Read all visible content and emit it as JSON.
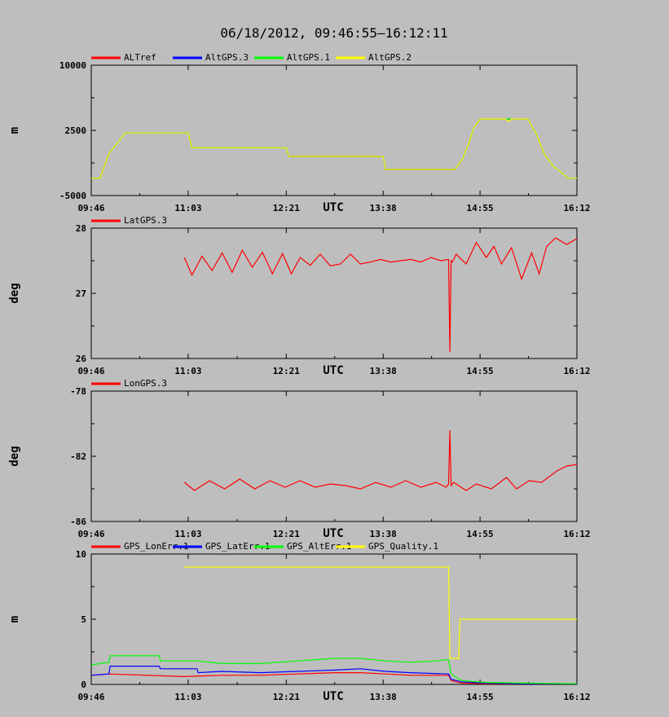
{
  "title": "06/18/2012, 09:46:55–16:12:11",
  "chart_data": [
    {
      "type": "line",
      "ylabel": "m",
      "xlabel": "UTC",
      "x_range": [
        "09:46",
        "16:12"
      ],
      "x_ticks": [
        "09:46",
        "11:03",
        "12:21",
        "13:38",
        "14:55",
        "16:12"
      ],
      "ylim": [
        -5000,
        10000
      ],
      "y_ticks": [
        "10000",
        "2500",
        "-5000"
      ],
      "legend": "top-left",
      "series": [
        {
          "name": "ALTref",
          "color": "#ff0000",
          "x": [
            "09:46",
            "09:53",
            "10:00",
            "10:13",
            "10:40",
            "11:03",
            "11:06",
            "11:30",
            "12:00",
            "12:21",
            "12:23",
            "13:00",
            "13:38",
            "13:40",
            "14:00",
            "14:30",
            "14:35",
            "14:41",
            "14:46",
            "14:50",
            "14:55",
            "15:10",
            "15:20",
            "15:30",
            "15:33",
            "15:40",
            "15:46",
            "15:53",
            "16:00",
            "16:05",
            "16:12"
          ],
          "y": [
            -3000,
            -3000,
            -200,
            2200,
            2200,
            2200,
            500,
            500,
            500,
            500,
            -500,
            -500,
            -500,
            -2000,
            -2000,
            -2000,
            -2000,
            -800,
            1000,
            2800,
            3800,
            3800,
            3800,
            3800,
            3800,
            2000,
            -200,
            -1600,
            -2400,
            -3000,
            -3000
          ]
        },
        {
          "name": "AltGPS.3",
          "color": "#0000ff",
          "x": [
            "09:46",
            "09:53",
            "10:00",
            "10:13",
            "10:40",
            "11:03",
            "11:06",
            "11:30",
            "12:00",
            "12:21",
            "12:23",
            "13:00",
            "13:38",
            "13:40",
            "14:00",
            "14:30",
            "14:35",
            "14:41",
            "14:46",
            "14:50",
            "14:55",
            "15:10",
            "15:20",
            "15:30",
            "15:33",
            "15:40",
            "15:46",
            "15:53",
            "16:00",
            "16:05",
            "16:12"
          ],
          "y": [
            -3000,
            -3000,
            -200,
            2200,
            2200,
            2200,
            500,
            500,
            500,
            500,
            -500,
            -500,
            -500,
            -2000,
            -2000,
            -2000,
            -2000,
            -800,
            1000,
            2800,
            3800,
            3800,
            3800,
            3800,
            3800,
            2000,
            -200,
            -1600,
            -2400,
            -3000,
            -3000
          ]
        },
        {
          "name": "AltGPS.1",
          "color": "#00ff00",
          "x": [
            "09:46",
            "09:53",
            "10:00",
            "10:13",
            "10:40",
            "11:03",
            "11:06",
            "11:30",
            "12:00",
            "12:21",
            "12:23",
            "13:00",
            "13:38",
            "13:40",
            "14:00",
            "14:30",
            "14:35",
            "14:41",
            "14:46",
            "14:50",
            "14:55",
            "15:10",
            "15:20",
            "15:30",
            "15:33",
            "15:40",
            "15:46",
            "15:53",
            "16:00",
            "16:05",
            "16:12"
          ],
          "y": [
            -3000,
            -3000,
            -200,
            2200,
            2200,
            2200,
            500,
            500,
            500,
            500,
            -500,
            -500,
            -500,
            -2000,
            -2000,
            -2000,
            -2000,
            -800,
            1000,
            2800,
            3800,
            3800,
            3800,
            3800,
            3800,
            2000,
            -200,
            -1600,
            -2400,
            -3000,
            -3000
          ]
        },
        {
          "name": "AltGPS.2",
          "color": "#ffff00",
          "x": [
            "09:46",
            "09:53",
            "10:00",
            "10:13",
            "10:40",
            "11:03",
            "11:06",
            "11:30",
            "12:00",
            "12:21",
            "12:23",
            "13:00",
            "13:38",
            "13:40",
            "14:00",
            "14:30",
            "14:35",
            "14:41",
            "14:46",
            "14:50",
            "14:55",
            "15:10",
            "15:15",
            "15:18",
            "15:20",
            "15:30",
            "15:33",
            "15:40",
            "15:46",
            "15:53",
            "16:00",
            "16:05",
            "16:12"
          ],
          "y": [
            -3000,
            -3000,
            -200,
            2200,
            2200,
            2200,
            500,
            500,
            500,
            500,
            -500,
            -500,
            -500,
            -2000,
            -2000,
            -2000,
            -2000,
            -800,
            1000,
            2800,
            3800,
            3800,
            3800,
            3500,
            3800,
            3800,
            3800,
            2000,
            -200,
            -1600,
            -2400,
            -3000,
            -3000
          ]
        }
      ]
    },
    {
      "type": "line",
      "ylabel": "deg",
      "xlabel": "UTC",
      "x_range": [
        "09:46",
        "16:12"
      ],
      "x_ticks": [
        "09:46",
        "11:03",
        "12:21",
        "13:38",
        "14:55",
        "16:12"
      ],
      "ylim": [
        26,
        28
      ],
      "y_ticks": [
        "28",
        "27",
        "26"
      ],
      "legend": "top-left",
      "series": [
        {
          "name": "LatGPS.3",
          "color": "#ff0000",
          "x": [
            "11:00",
            "11:06",
            "11:14",
            "11:22",
            "11:30",
            "11:38",
            "11:46",
            "11:54",
            "12:02",
            "12:10",
            "12:18",
            "12:25",
            "12:32",
            "12:40",
            "12:48",
            "12:56",
            "13:04",
            "13:12",
            "13:20",
            "13:28",
            "13:36",
            "13:44",
            "13:52",
            "14:00",
            "14:08",
            "14:16",
            "14:24",
            "14:30",
            "14:31",
            "14:32",
            "14:33",
            "14:36",
            "14:44",
            "14:52",
            "15:00",
            "15:06",
            "15:12",
            "15:20",
            "15:28",
            "15:36",
            "15:42",
            "15:48",
            "15:55",
            "16:04",
            "16:12"
          ],
          "y": [
            27.55,
            27.28,
            27.57,
            27.35,
            27.62,
            27.32,
            27.66,
            27.4,
            27.63,
            27.3,
            27.61,
            27.3,
            27.55,
            27.43,
            27.6,
            27.42,
            27.45,
            27.6,
            27.45,
            27.48,
            27.52,
            27.48,
            27.5,
            27.52,
            27.48,
            27.55,
            27.5,
            27.52,
            26.1,
            27.5,
            27.48,
            27.6,
            27.45,
            27.78,
            27.55,
            27.72,
            27.45,
            27.7,
            27.22,
            27.62,
            27.3,
            27.72,
            27.85,
            27.75,
            27.84
          ]
        }
      ]
    },
    {
      "type": "line",
      "ylabel": "deg",
      "xlabel": "UTC",
      "x_range": [
        "09:46",
        "16:12"
      ],
      "x_ticks": [
        "09:46",
        "11:03",
        "12:21",
        "13:38",
        "14:55",
        "16:12"
      ],
      "ylim": [
        -86,
        -78
      ],
      "y_ticks": [
        "-78",
        "-82",
        "-86"
      ],
      "legend": "top-left",
      "series": [
        {
          "name": "LonGPS.3",
          "color": "#ff0000",
          "x": [
            "11:00",
            "11:08",
            "11:20",
            "11:32",
            "11:44",
            "11:56",
            "12:08",
            "12:20",
            "12:32",
            "12:44",
            "12:56",
            "13:08",
            "13:20",
            "13:32",
            "13:44",
            "13:56",
            "14:08",
            "14:20",
            "14:28",
            "14:30",
            "14:31",
            "14:32",
            "14:34",
            "14:44",
            "14:52",
            "15:04",
            "15:16",
            "15:24",
            "15:34",
            "15:44",
            "15:56",
            "16:04",
            "16:12"
          ],
          "y": [
            -83.6,
            -84.1,
            -83.5,
            -84.0,
            -83.4,
            -84.0,
            -83.5,
            -83.9,
            -83.5,
            -83.9,
            -83.7,
            -83.8,
            -84.0,
            -83.6,
            -83.9,
            -83.5,
            -83.9,
            -83.6,
            -83.9,
            -83.7,
            -80.4,
            -83.8,
            -83.6,
            -84.1,
            -83.7,
            -84.0,
            -83.3,
            -84.0,
            -83.5,
            -83.6,
            -82.9,
            -82.6,
            -82.5
          ]
        }
      ]
    },
    {
      "type": "line",
      "ylabel": "m",
      "xlabel": "UTC",
      "x_range": [
        "09:46",
        "16:12"
      ],
      "x_ticks": [
        "09:46",
        "11:03",
        "12:21",
        "13:38",
        "14:55",
        "16:12"
      ],
      "ylim": [
        0,
        10
      ],
      "y_ticks": [
        "10",
        "5",
        "0"
      ],
      "legend": "top-left",
      "series": [
        {
          "name": "GPS_LonErr.1",
          "color": "#ff0000",
          "x": [
            "09:46",
            "10:00",
            "11:00",
            "11:30",
            "12:00",
            "12:30",
            "13:00",
            "13:20",
            "13:40",
            "14:00",
            "14:30",
            "14:32",
            "14:40",
            "15:00",
            "15:30",
            "16:12"
          ],
          "y": [
            0.7,
            0.8,
            0.6,
            0.7,
            0.7,
            0.8,
            0.9,
            0.9,
            0.8,
            0.7,
            0.7,
            0.3,
            0.1,
            0.05,
            0.05,
            0.05
          ]
        },
        {
          "name": "GPS_LatErr.1",
          "color": "#0000ff",
          "x": [
            "09:46",
            "10:00",
            "10:01",
            "10:40",
            "10:41",
            "11:10",
            "11:11",
            "11:30",
            "12:00",
            "12:30",
            "13:00",
            "13:20",
            "13:40",
            "14:00",
            "14:30",
            "14:32",
            "14:40",
            "15:00",
            "15:30",
            "16:12"
          ],
          "y": [
            0.7,
            0.8,
            1.4,
            1.4,
            1.2,
            1.2,
            0.9,
            1.0,
            0.9,
            1.0,
            1.1,
            1.2,
            1.0,
            0.9,
            0.8,
            0.4,
            0.2,
            0.1,
            0.05,
            0.05
          ]
        },
        {
          "name": "GPS_AltErr.1",
          "color": "#00ff00",
          "x": [
            "09:46",
            "10:00",
            "10:01",
            "10:40",
            "10:41",
            "11:10",
            "11:30",
            "12:00",
            "12:30",
            "13:00",
            "13:20",
            "13:40",
            "14:00",
            "14:20",
            "14:30",
            "14:32",
            "14:40",
            "15:00",
            "15:30",
            "16:12"
          ],
          "y": [
            1.5,
            1.7,
            2.2,
            2.2,
            1.8,
            1.8,
            1.6,
            1.6,
            1.8,
            2.0,
            2.0,
            1.8,
            1.7,
            1.8,
            1.9,
            0.8,
            0.3,
            0.15,
            0.1,
            0.05
          ]
        },
        {
          "name": "GPS_Quality.1",
          "color": "#ffff00",
          "x": [
            "11:00",
            "14:30",
            "14:31",
            "14:38",
            "14:39",
            "16:12"
          ],
          "y": [
            9,
            9,
            2,
            2,
            5,
            5
          ]
        }
      ]
    }
  ]
}
